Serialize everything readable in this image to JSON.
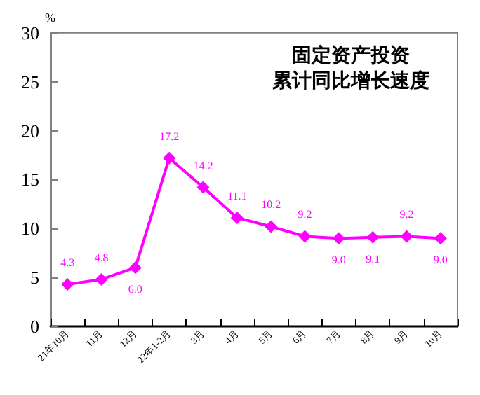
{
  "chart_data": {
    "type": "line",
    "title": "固定资产投资",
    "subtitle": "累计同比增长速度",
    "ylabel": "%",
    "categories": [
      "21年10月",
      "11月",
      "12月",
      "22年1-2月",
      "3月",
      "4月",
      "5月",
      "6月",
      "7月",
      "8月",
      "9月",
      "10月"
    ],
    "series": [
      {
        "color": "#ff00ff",
        "values": [
          4.3,
          4.8,
          6.0,
          17.2,
          14.2,
          11.1,
          10.2,
          9.2,
          9.0,
          9.1,
          9.2,
          9.0
        ],
        "value_labels": [
          "4.3",
          "4.8",
          "6.0",
          "17.2",
          "14.2",
          "11.1",
          "10.2",
          "9.2",
          "9.0",
          "9.1",
          "9.2",
          "9.0"
        ]
      }
    ],
    "ylim": [
      0,
      30
    ],
    "yticks": [
      0,
      5,
      10,
      15,
      20,
      25,
      30
    ],
    "grid": false,
    "marker": "diamond",
    "line_style": "solid"
  }
}
